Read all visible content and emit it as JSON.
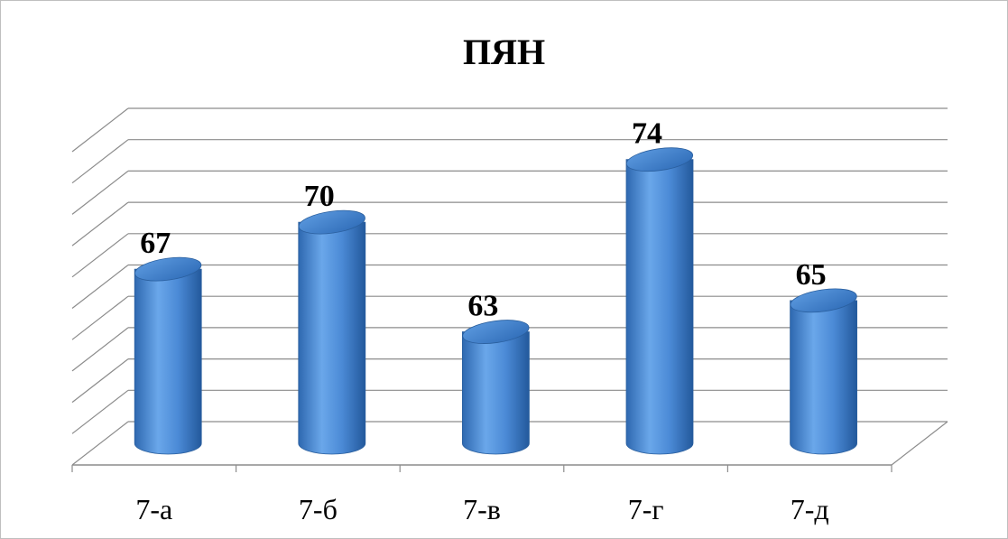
{
  "chart_data": {
    "type": "bar",
    "title": "ПЯН",
    "categories": [
      "7-а",
      "7-б",
      "7-в",
      "7-г",
      "7-д"
    ],
    "values": [
      67,
      70,
      63,
      74,
      65
    ],
    "ylim": [
      56,
      76
    ],
    "gridline_step": 2,
    "grid": true,
    "style": "3d-cylinder",
    "bar_color": "#4a8fd6",
    "data_labels": true
  }
}
